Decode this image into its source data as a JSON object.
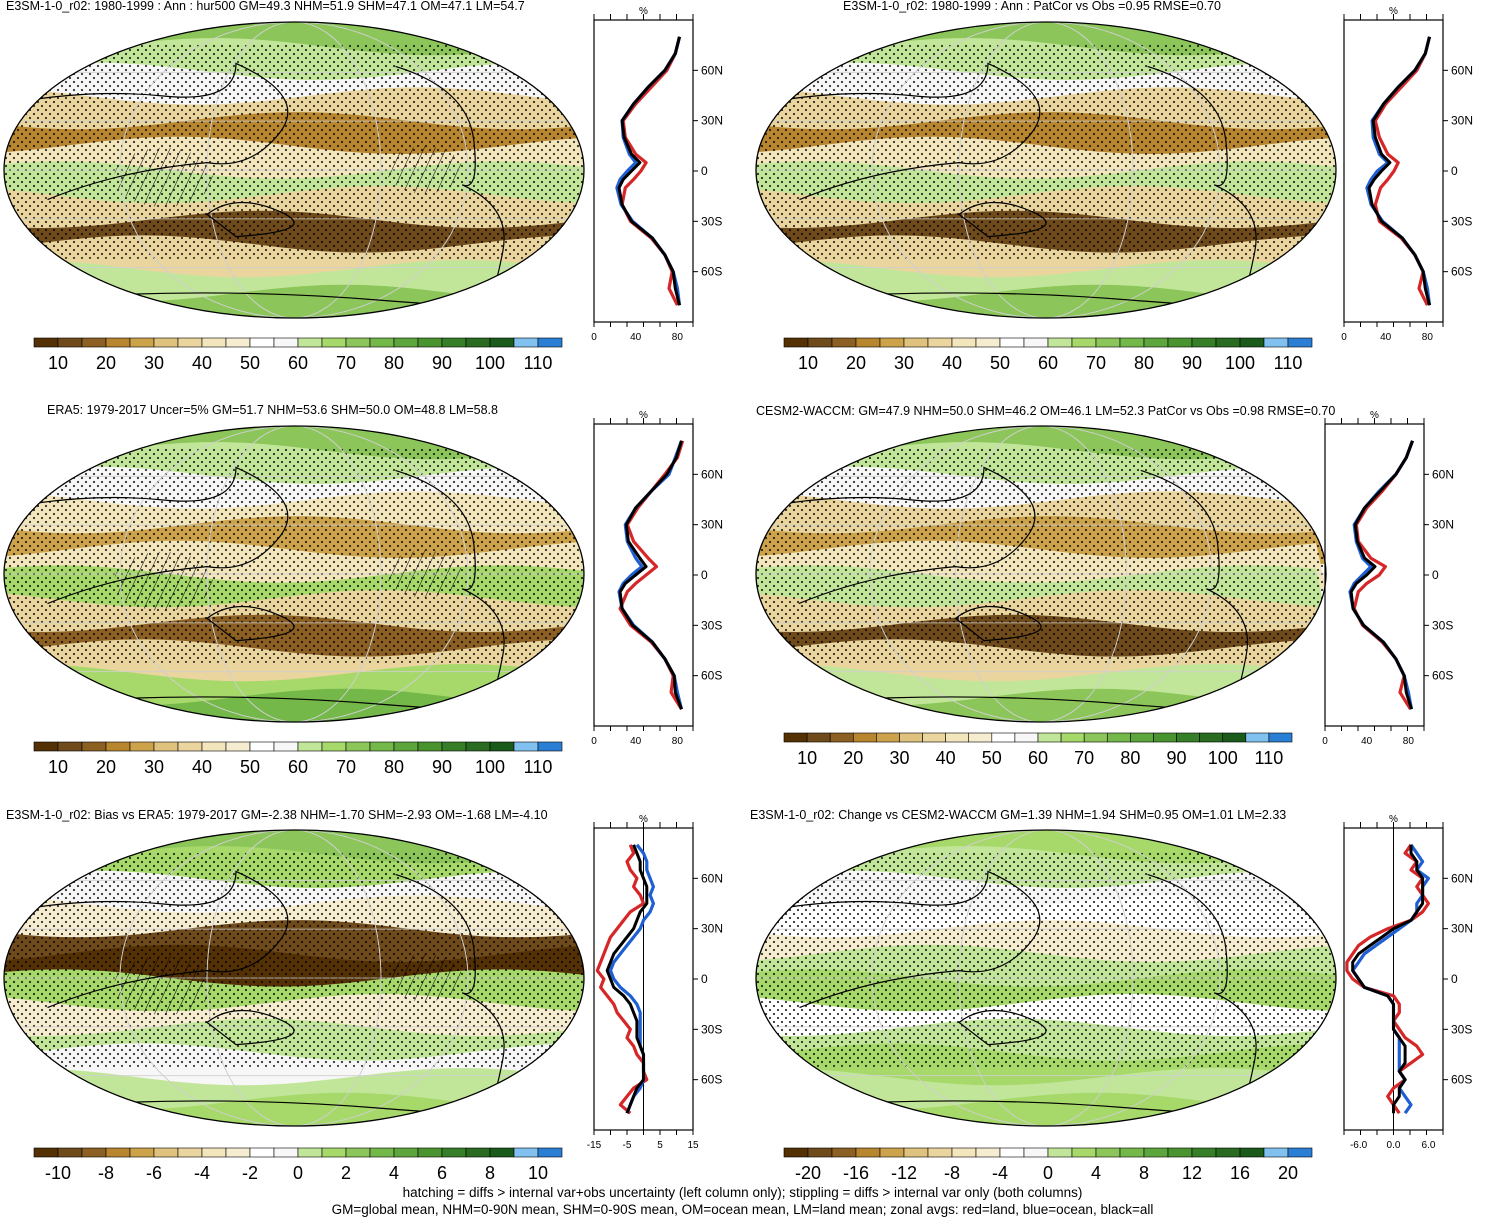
{
  "colors": {
    "fill_scale": [
      "#543005",
      "#6f4a1a",
      "#8c5f23",
      "#b8862f",
      "#cca24a",
      "#dfc27d",
      "#ead59e",
      "#f3e6bd",
      "#f6ecd0",
      "#ffffff",
      "#f7f7f7",
      "#c2e699",
      "#a6d96a",
      "#8cc65a",
      "#74b84a",
      "#5da53d",
      "#4a9430",
      "#367f28",
      "#2a6b22",
      "#1a5a1a",
      "#80c1f0",
      "#2a7fd4"
    ],
    "stipple": "#000000",
    "land_line": "#d62728",
    "ocean_line": "#1f5fd4",
    "all_line": "#000000"
  },
  "panels": [
    {
      "id": "model",
      "title": "E3SM-1-0_r02: 1980-1999 : Ann : hur500 GM=49.3 NHM=51.9 SHM=47.1 OM=47.1 LM=54.7",
      "hatching": true,
      "colorbar_labels": [
        "10",
        "20",
        "30",
        "40",
        "50",
        "60",
        "70",
        "80",
        "90",
        "100",
        "110"
      ]
    },
    {
      "id": "model-patcor",
      "title": "E3SM-1-0_r02: 1980-1999 : Ann : PatCor vs Obs =0.95 RMSE=0.70",
      "hatching": false,
      "colorbar_labels": [
        "10",
        "20",
        "30",
        "40",
        "50",
        "60",
        "70",
        "80",
        "90",
        "100",
        "110"
      ]
    },
    {
      "id": "obs",
      "title": "ERA5: 1979-2017 Uncer=5% GM=51.7 NHM=53.6 SHM=50.0 OM=48.8 LM=58.8",
      "hatching": true,
      "colorbar_labels": [
        "10",
        "20",
        "30",
        "40",
        "50",
        "60",
        "70",
        "80",
        "90",
        "100",
        "110"
      ]
    },
    {
      "id": "reference",
      "title": "CESM2-WACCM: GM=47.9 NHM=50.0 SHM=46.2 OM=46.1 LM=52.3 PatCor vs Obs =0.98 RMSE=0.70",
      "hatching": false,
      "colorbar_labels": [
        "10",
        "20",
        "30",
        "40",
        "50",
        "60",
        "70",
        "80",
        "90",
        "100",
        "110"
      ]
    },
    {
      "id": "bias",
      "title": "E3SM-1-0_r02: Bias vs ERA5: 1979-2017 GM=-2.38 NHM=-1.70 SHM=-2.93 OM=-1.68 LM=-4.10",
      "hatching": true,
      "colorbar_labels": [
        "-10",
        "-8",
        "-6",
        "-4",
        "-2",
        "0",
        "2",
        "4",
        "6",
        "8",
        "10"
      ]
    },
    {
      "id": "change",
      "title": "E3SM-1-0_r02: Change vs CESM2-WACCM GM=1.39 NHM=1.94 SHM=0.95 OM=1.01 LM=2.33",
      "hatching": false,
      "colorbar_labels": [
        "-20",
        "-16",
        "-12",
        "-8",
        "-4",
        "0",
        "4",
        "8",
        "12",
        "16",
        "20"
      ]
    }
  ],
  "zonal_unit": "%",
  "lat_labels": [
    "60N",
    "30N",
    "0",
    "30S",
    "60S"
  ],
  "chart_data": [
    {
      "type": "line",
      "panel": "model",
      "unit": "%",
      "y_ticks": [
        "60N",
        "30N",
        "0",
        "30S",
        "60S"
      ],
      "x_ticks": [
        "0",
        "40",
        "80"
      ],
      "xlim": [
        0,
        95
      ],
      "ylim": [
        -90,
        90
      ],
      "lat": [
        80,
        70,
        60,
        50,
        40,
        30,
        20,
        10,
        5,
        0,
        -5,
        -10,
        -20,
        -30,
        -40,
        -50,
        -60,
        -70,
        -80
      ],
      "series": [
        {
          "name": "red=land",
          "values": [
            82,
            78,
            70,
            55,
            40,
            28,
            30,
            40,
            50,
            45,
            38,
            30,
            27,
            35,
            55,
            68,
            75,
            72,
            80
          ]
        },
        {
          "name": "blue=ocean",
          "values": [
            82,
            78,
            68,
            52,
            38,
            27,
            28,
            34,
            40,
            32,
            25,
            22,
            26,
            37,
            56,
            68,
            76,
            80,
            82
          ]
        },
        {
          "name": "black=all",
          "values": [
            82,
            78,
            68,
            52,
            38,
            27,
            29,
            36,
            44,
            36,
            28,
            24,
            27,
            36,
            56,
            68,
            76,
            78,
            82
          ]
        }
      ]
    },
    {
      "type": "line",
      "panel": "model-patcor",
      "unit": "%",
      "y_ticks": [
        "60N",
        "30N",
        "0",
        "30S",
        "60S"
      ],
      "x_ticks": [
        "0",
        "40",
        "80"
      ],
      "xlim": [
        0,
        95
      ],
      "ylim": [
        -90,
        90
      ],
      "lat": [
        80,
        70,
        60,
        50,
        40,
        30,
        20,
        10,
        5,
        0,
        -5,
        -10,
        -20,
        -30,
        -40,
        -50,
        -60,
        -70,
        -80
      ],
      "series": [
        {
          "name": "red=land",
          "values": [
            82,
            78,
            70,
            55,
            40,
            30,
            34,
            42,
            52,
            48,
            42,
            35,
            30,
            34,
            55,
            68,
            76,
            72,
            80
          ]
        },
        {
          "name": "blue=ocean",
          "values": [
            82,
            78,
            68,
            52,
            38,
            27,
            28,
            34,
            42,
            32,
            26,
            22,
            26,
            37,
            56,
            68,
            76,
            80,
            82
          ]
        },
        {
          "name": "black=all",
          "values": [
            82,
            78,
            68,
            52,
            38,
            28,
            30,
            36,
            44,
            36,
            29,
            24,
            27,
            36,
            56,
            68,
            76,
            78,
            82
          ]
        }
      ]
    },
    {
      "type": "line",
      "panel": "obs",
      "unit": "%",
      "y_ticks": [
        "60N",
        "30N",
        "0",
        "30S",
        "60S"
      ],
      "x_ticks": [
        "0",
        "40",
        "80"
      ],
      "xlim": [
        0,
        95
      ],
      "ylim": [
        -90,
        90
      ],
      "lat": [
        80,
        70,
        60,
        50,
        40,
        30,
        20,
        10,
        5,
        0,
        -5,
        -10,
        -20,
        -30,
        -40,
        -50,
        -60,
        -70,
        -80
      ],
      "series": [
        {
          "name": "red=land",
          "values": [
            85,
            80,
            68,
            55,
            42,
            32,
            38,
            52,
            60,
            50,
            40,
            32,
            25,
            35,
            55,
            68,
            76,
            74,
            84
          ]
        },
        {
          "name": "blue=ocean",
          "values": [
            84,
            78,
            72,
            55,
            40,
            30,
            32,
            40,
            46,
            36,
            28,
            24,
            27,
            38,
            56,
            68,
            77,
            80,
            84
          ]
        },
        {
          "name": "black=all",
          "values": [
            84,
            79,
            70,
            55,
            40,
            31,
            33,
            44,
            50,
            40,
            30,
            25,
            27,
            37,
            56,
            68,
            77,
            78,
            84
          ]
        }
      ]
    },
    {
      "type": "line",
      "panel": "reference",
      "unit": "%",
      "y_ticks": [
        "60N",
        "30N",
        "0",
        "30S",
        "60S"
      ],
      "x_ticks": [
        "0",
        "40",
        "80"
      ],
      "xlim": [
        0,
        95
      ],
      "ylim": [
        -90,
        90
      ],
      "lat": [
        80,
        70,
        60,
        50,
        40,
        30,
        20,
        10,
        5,
        0,
        -5,
        -10,
        -20,
        -30,
        -40,
        -50,
        -60,
        -70,
        -80
      ],
      "series": [
        {
          "name": "red=land",
          "values": [
            84,
            78,
            68,
            55,
            40,
            30,
            32,
            44,
            58,
            52,
            40,
            32,
            28,
            36,
            55,
            68,
            76,
            72,
            82
          ]
        },
        {
          "name": "blue=ocean",
          "values": [
            84,
            78,
            68,
            52,
            38,
            28,
            30,
            36,
            44,
            36,
            28,
            24,
            27,
            37,
            56,
            68,
            76,
            80,
            83
          ]
        },
        {
          "name": "black=all",
          "values": [
            84,
            78,
            68,
            53,
            38,
            29,
            31,
            38,
            48,
            40,
            30,
            25,
            27,
            37,
            56,
            68,
            76,
            78,
            83
          ]
        }
      ]
    },
    {
      "type": "line",
      "panel": "bias",
      "unit": "%",
      "y_ticks": [
        "60N",
        "30N",
        "0",
        "30S",
        "60S"
      ],
      "x_ticks": [
        "-15",
        "-5",
        "5",
        "15"
      ],
      "xlim": [
        -15,
        15
      ],
      "ylim": [
        -90,
        90
      ],
      "lat": [
        80,
        75,
        70,
        65,
        60,
        55,
        50,
        45,
        40,
        35,
        30,
        25,
        20,
        15,
        10,
        5,
        0,
        -5,
        -10,
        -15,
        -20,
        -25,
        -30,
        -35,
        -40,
        -45,
        -50,
        -55,
        -60,
        -65,
        -70,
        -75,
        -80
      ],
      "series": [
        {
          "name": "red=land",
          "values": [
            -4,
            -3,
            -5,
            -4,
            -2,
            -3,
            -1,
            0,
            -4,
            -6,
            -8,
            -10,
            -11,
            -12,
            -13,
            -14,
            -12,
            -13,
            -11,
            -9,
            -8,
            -6,
            -4,
            -5,
            -3,
            -2,
            0,
            0,
            1,
            -3,
            -5,
            -7,
            -4
          ]
        },
        {
          "name": "blue=ocean",
          "values": [
            -2,
            0,
            1,
            1,
            2,
            3,
            2,
            3,
            2,
            0,
            -1,
            -3,
            -5,
            -7,
            -9,
            -10,
            -9,
            -7,
            -4,
            -2,
            -1,
            -1,
            -1,
            -1,
            -1,
            0,
            0,
            0,
            0,
            -1,
            -3,
            -4,
            -5
          ]
        },
        {
          "name": "black=all",
          "values": [
            -3,
            -2,
            -1,
            -1,
            0,
            1,
            1,
            1,
            -1,
            -2,
            -3,
            -5,
            -7,
            -9,
            -10,
            -11,
            -10,
            -9,
            -6,
            -4,
            -3,
            -2,
            -2,
            -2,
            -1,
            0,
            0,
            0,
            0,
            -2,
            -3,
            -4,
            -5
          ]
        }
      ]
    },
    {
      "type": "line",
      "panel": "change",
      "unit": "%",
      "y_ticks": [
        "60N",
        "30N",
        "0",
        "30S",
        "60S"
      ],
      "x_ticks": [
        "-6.0",
        "0.0",
        "6.0"
      ],
      "xlim": [
        -8.5,
        8.5
      ],
      "ylim": [
        -90,
        90
      ],
      "lat": [
        80,
        75,
        70,
        65,
        60,
        55,
        50,
        45,
        40,
        35,
        30,
        25,
        20,
        15,
        10,
        5,
        0,
        -5,
        -10,
        -15,
        -20,
        -25,
        -30,
        -35,
        -40,
        -45,
        -50,
        -55,
        -60,
        -65,
        -70,
        -75,
        -80
      ],
      "series": [
        {
          "name": "red=land",
          "values": [
            3,
            2,
            4,
            3,
            5,
            4,
            5,
            6,
            5,
            3,
            -1,
            -4,
            -6,
            -7,
            -8,
            -8,
            -7,
            -5,
            0,
            1,
            1,
            0,
            1,
            2,
            4,
            5,
            3,
            1,
            2,
            0,
            -1,
            0,
            1
          ]
        },
        {
          "name": "blue=ocean",
          "values": [
            3,
            4,
            5,
            4,
            6,
            5,
            5,
            4,
            4,
            3,
            1,
            -1,
            -3,
            -5,
            -6,
            -7,
            -6,
            -5,
            -1,
            0,
            0,
            0,
            0,
            1,
            1,
            1,
            1,
            1,
            2,
            1,
            2,
            3,
            2
          ]
        },
        {
          "name": "black=all",
          "values": [
            3,
            3,
            4,
            4,
            5,
            5,
            5,
            5,
            4,
            3,
            0,
            -2,
            -4,
            -6,
            -7,
            -7,
            -6,
            -5,
            -1,
            0,
            0,
            0,
            0,
            1,
            2,
            2,
            2,
            1,
            2,
            1,
            1,
            0,
            0
          ]
        }
      ]
    }
  ],
  "footer": {
    "line1": "hatching = diffs > internal var+obs uncertainty (left column only); stippling = diffs > internal var only (both columns)",
    "line2": "GM=global mean, NHM=0-90N mean, SHM=0-90S mean, OM=ocean mean, LM=land mean; zonal avgs: red=land, blue=ocean, black=all"
  }
}
